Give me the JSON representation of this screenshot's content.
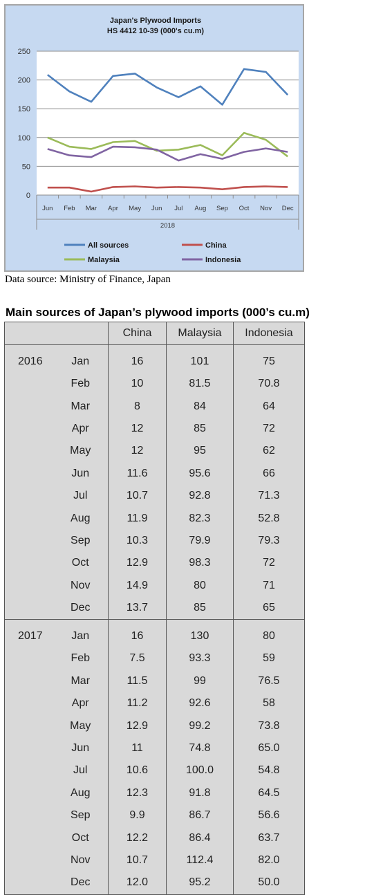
{
  "chart_data": {
    "type": "line",
    "title": "Japan's Plywood Imports",
    "subtitle": "HS 4412 10-39  (000's cu.m)",
    "categories": [
      "Jun",
      "Feb",
      "Mar",
      "Apr",
      "May",
      "Jun",
      "Jul",
      "Aug",
      "Sep",
      "Oct",
      "Nov",
      "Dec"
    ],
    "xgroup": "2018",
    "ylim": [
      0,
      250
    ],
    "yticks": [
      "0",
      "50",
      "100",
      "150",
      "200",
      "250"
    ],
    "grid": true,
    "legend": "bottom",
    "series": [
      {
        "name": "All sources",
        "color": "#4f81bd",
        "values": [
          209,
          180,
          162,
          207,
          211,
          187,
          170,
          189,
          157,
          219,
          214,
          174
        ]
      },
      {
        "name": "China",
        "color": "#c0504d",
        "values": [
          13,
          13,
          6,
          14,
          15,
          13,
          14,
          13,
          10,
          14,
          15,
          14
        ]
      },
      {
        "name": "Malaysia",
        "color": "#9bbb59",
        "values": [
          100,
          84,
          80,
          92,
          94,
          77,
          79,
          87,
          69,
          108,
          96,
          67
        ]
      },
      {
        "name": "Indonesia",
        "color": "#8064a2",
        "values": [
          80,
          69,
          66,
          84,
          83,
          79,
          60,
          71,
          63,
          75,
          81,
          75
        ]
      }
    ]
  },
  "source_note": "Data source: Ministry of Finance, Japan",
  "table": {
    "title": "Main sources of Japan’s plywood imports (000’s cu.m)",
    "headers": [
      "China",
      "Malaysia",
      "Indonesia"
    ],
    "groups": [
      {
        "year": "2016",
        "rows": [
          {
            "month": "Jan",
            "china": "16",
            "malaysia": "101",
            "indonesia": "75"
          },
          {
            "month": "Feb",
            "china": "10",
            "malaysia": "81.5",
            "indonesia": "70.8"
          },
          {
            "month": "Mar",
            "china": "8",
            "malaysia": "84",
            "indonesia": "64"
          },
          {
            "month": "Apr",
            "china": "12",
            "malaysia": "85",
            "indonesia": "72"
          },
          {
            "month": "May",
            "china": "12",
            "malaysia": "95",
            "indonesia": "62"
          },
          {
            "month": "Jun",
            "china": "11.6",
            "malaysia": "95.6",
            "indonesia": "66"
          },
          {
            "month": "Jul",
            "china": "10.7",
            "malaysia": "92.8",
            "indonesia": "71.3"
          },
          {
            "month": "Aug",
            "china": "11.9",
            "malaysia": "82.3",
            "indonesia": "52.8"
          },
          {
            "month": "Sep",
            "china": "10.3",
            "malaysia": "79.9",
            "indonesia": "79.3"
          },
          {
            "month": "Oct",
            "china": "12.9",
            "malaysia": "98.3",
            "indonesia": "72"
          },
          {
            "month": "Nov",
            "china": "14.9",
            "malaysia": "80",
            "indonesia": "71"
          },
          {
            "month": "Dec",
            "china": "13.7",
            "malaysia": "85",
            "indonesia": "65"
          }
        ]
      },
      {
        "year": "2017",
        "rows": [
          {
            "month": "Jan",
            "china": "16",
            "malaysia": "130",
            "indonesia": "80"
          },
          {
            "month": "Feb",
            "china": "7.5",
            "malaysia": "93.3",
            "indonesia": "59"
          },
          {
            "month": "Mar",
            "china": "11.5",
            "malaysia": "99",
            "indonesia": "76.5"
          },
          {
            "month": "Apr",
            "china": "11.2",
            "malaysia": "92.6",
            "indonesia": "58"
          },
          {
            "month": "May",
            "china": "12.9",
            "malaysia": "99.2",
            "indonesia": "73.8"
          },
          {
            "month": "Jun",
            "china": "11",
            "malaysia": "74.8",
            "indonesia": "65.0"
          },
          {
            "month": "Jul",
            "china": "10.6",
            "malaysia": "100.0",
            "indonesia": "54.8"
          },
          {
            "month": "Aug",
            "china": "12.3",
            "malaysia": "91.8",
            "indonesia": "64.5"
          },
          {
            "month": "Sep",
            "china": "9.9",
            "malaysia": "86.7",
            "indonesia": "56.6"
          },
          {
            "month": "Oct",
            "china": "12.2",
            "malaysia": "86.4",
            "indonesia": "63.7"
          },
          {
            "month": "Nov",
            "china": "10.7",
            "malaysia": "112.4",
            "indonesia": "82.0"
          },
          {
            "month": "Dec",
            "china": "12.0",
            "malaysia": "95.2",
            "indonesia": "50.0"
          }
        ]
      }
    ]
  }
}
